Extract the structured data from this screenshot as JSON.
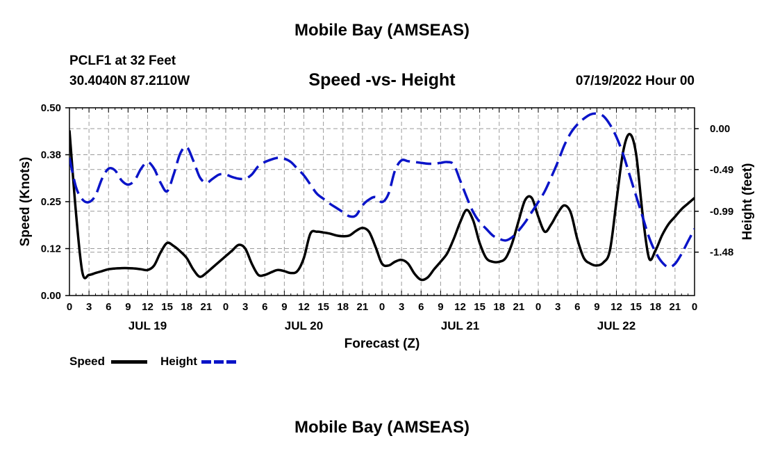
{
  "header": {
    "title": "Mobile Bay (AMSEAS)",
    "station": "PCLF1 at 32 Feet",
    "coords": "30.4040N  87.2110W",
    "subtitle": "Speed -vs- Height",
    "datetime": "07/19/2022 Hour 00"
  },
  "footer": {
    "title": "Mobile Bay (AMSEAS)"
  },
  "legend": {
    "speed_label": "Speed",
    "height_label": "Height"
  },
  "colors": {
    "speed": "#000000",
    "height": "#0a14c8",
    "grid": "#9a9a9a"
  },
  "chart_data": {
    "type": "line",
    "title": "Speed -vs- Height",
    "xlabel": "Forecast (Z)",
    "ylabel": "Speed (Knots)",
    "y2label": "Height (feet)",
    "xlim": [
      0,
      96
    ],
    "ylim": [
      0,
      0.5
    ],
    "y2lim": [
      -2.0,
      0.25
    ],
    "x_tick_labels": [
      "0",
      "3",
      "6",
      "9",
      "12",
      "15",
      "18",
      "21",
      "0",
      "3",
      "6",
      "9",
      "12",
      "15",
      "18",
      "21",
      "0",
      "3",
      "6",
      "9",
      "12",
      "15",
      "18",
      "21",
      "0",
      "3",
      "6",
      "9",
      "12",
      "15",
      "18",
      "21",
      "0"
    ],
    "day_labels": [
      {
        "label": "JUL 19",
        "x": 12
      },
      {
        "label": "JUL 20",
        "x": 36
      },
      {
        "label": "JUL 21",
        "x": 60
      },
      {
        "label": "JUL 22",
        "x": 84
      }
    ],
    "y_ticks": [
      {
        "value": 0.0,
        "label": "0.00"
      },
      {
        "value": 0.125,
        "label": "0.12"
      },
      {
        "value": 0.25,
        "label": "0.25"
      },
      {
        "value": 0.375,
        "label": "0.38"
      },
      {
        "value": 0.5,
        "label": "0.50"
      }
    ],
    "y2_ticks": [
      {
        "value": 0.0,
        "label": "0.00"
      },
      {
        "value": -0.49,
        "label": "-0.49"
      },
      {
        "value": -0.99,
        "label": "-0.99"
      },
      {
        "value": -1.48,
        "label": "-1.48"
      }
    ],
    "legend_position": "bottom-left",
    "series": [
      {
        "name": "Speed",
        "axis": "left",
        "style": "solid",
        "x": [
          0,
          1,
          2,
          3,
          4,
          5,
          6,
          7,
          8,
          9,
          10,
          11,
          12,
          13,
          14,
          15,
          16,
          17,
          18,
          19,
          20,
          21,
          22,
          23,
          24,
          25,
          26,
          27,
          28,
          29,
          30,
          31,
          32,
          33,
          34,
          35,
          36,
          37,
          38,
          39,
          40,
          41,
          42,
          43,
          44,
          45,
          46,
          47,
          48,
          49,
          50,
          51,
          52,
          53,
          54,
          55,
          56,
          57,
          58,
          59,
          60,
          61,
          62,
          63,
          64,
          65,
          66,
          67,
          68,
          69,
          70,
          71,
          72,
          73,
          74,
          75,
          76,
          77,
          78,
          79,
          80,
          81,
          82,
          83,
          84,
          85,
          86,
          87,
          88,
          89,
          90,
          91,
          92,
          93,
          94,
          95,
          96
        ],
        "values": [
          0.44,
          0.22,
          0.06,
          0.055,
          0.06,
          0.065,
          0.07,
          0.072,
          0.073,
          0.073,
          0.072,
          0.07,
          0.068,
          0.08,
          0.115,
          0.14,
          0.132,
          0.118,
          0.1,
          0.07,
          0.05,
          0.06,
          0.075,
          0.09,
          0.105,
          0.12,
          0.135,
          0.125,
          0.085,
          0.055,
          0.055,
          0.062,
          0.068,
          0.065,
          0.06,
          0.065,
          0.1,
          0.165,
          0.17,
          0.168,
          0.165,
          0.16,
          0.158,
          0.16,
          0.172,
          0.18,
          0.17,
          0.13,
          0.085,
          0.08,
          0.09,
          0.095,
          0.085,
          0.058,
          0.042,
          0.048,
          0.07,
          0.09,
          0.112,
          0.15,
          0.195,
          0.228,
          0.2,
          0.14,
          0.1,
          0.09,
          0.09,
          0.1,
          0.14,
          0.2,
          0.255,
          0.26,
          0.21,
          0.17,
          0.19,
          0.22,
          0.24,
          0.22,
          0.15,
          0.1,
          0.085,
          0.08,
          0.088,
          0.12,
          0.25,
          0.38,
          0.43,
          0.38,
          0.22,
          0.1,
          0.12,
          0.16,
          0.19,
          0.21,
          0.23,
          0.245,
          0.26
        ]
      },
      {
        "name": "Height",
        "axis": "right",
        "style": "dashed",
        "x": [
          0,
          1,
          2,
          3,
          4,
          5,
          6,
          7,
          8,
          9,
          10,
          11,
          12,
          13,
          14,
          15,
          16,
          17,
          18,
          19,
          20,
          21,
          22,
          23,
          24,
          25,
          26,
          27,
          28,
          29,
          30,
          31,
          32,
          33,
          34,
          35,
          36,
          37,
          38,
          39,
          40,
          41,
          42,
          43,
          44,
          45,
          46,
          47,
          48,
          49,
          50,
          51,
          52,
          53,
          54,
          55,
          56,
          57,
          58,
          59,
          60,
          61,
          62,
          63,
          64,
          65,
          66,
          67,
          68,
          69,
          70,
          71,
          72,
          73,
          74,
          75,
          76,
          77,
          78,
          79,
          80,
          81,
          82,
          83,
          84,
          85,
          86,
          87,
          88,
          89,
          90,
          91,
          92,
          93,
          94,
          95,
          96
        ],
        "values": [
          -0.35,
          -0.7,
          -0.85,
          -0.88,
          -0.8,
          -0.6,
          -0.48,
          -0.5,
          -0.62,
          -0.67,
          -0.62,
          -0.48,
          -0.4,
          -0.48,
          -0.65,
          -0.75,
          -0.55,
          -0.3,
          -0.22,
          -0.38,
          -0.58,
          -0.65,
          -0.6,
          -0.55,
          -0.55,
          -0.58,
          -0.6,
          -0.6,
          -0.55,
          -0.45,
          -0.4,
          -0.37,
          -0.35,
          -0.36,
          -0.4,
          -0.48,
          -0.56,
          -0.67,
          -0.78,
          -0.84,
          -0.9,
          -0.95,
          -1.0,
          -1.05,
          -1.04,
          -0.92,
          -0.85,
          -0.82,
          -0.88,
          -0.78,
          -0.5,
          -0.38,
          -0.39,
          -0.4,
          -0.41,
          -0.42,
          -0.42,
          -0.41,
          -0.4,
          -0.43,
          -0.62,
          -0.82,
          -1.0,
          -1.12,
          -1.2,
          -1.28,
          -1.32,
          -1.34,
          -1.3,
          -1.22,
          -1.12,
          -1.0,
          -0.88,
          -0.75,
          -0.58,
          -0.4,
          -0.2,
          -0.05,
          0.05,
          0.12,
          0.17,
          0.18,
          0.15,
          0.05,
          -0.1,
          -0.3,
          -0.55,
          -0.8,
          -1.05,
          -1.3,
          -1.48,
          -1.6,
          -1.66,
          -1.62,
          -1.5,
          -1.35,
          -1.2
        ]
      }
    ]
  }
}
